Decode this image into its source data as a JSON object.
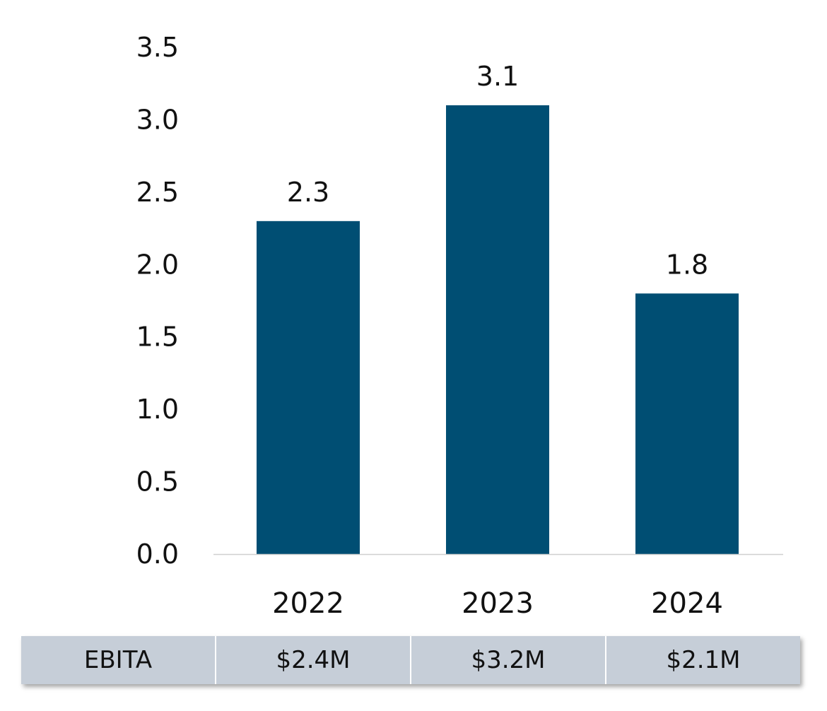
{
  "chart_data": {
    "type": "bar",
    "categories": [
      "2022",
      "2023",
      "2024"
    ],
    "values": [
      2.3,
      3.1,
      1.8
    ],
    "data_labels": [
      "2.3",
      "3.1",
      "1.8"
    ],
    "title": "",
    "xlabel": "",
    "ylabel": "",
    "ylim": [
      0,
      3.5
    ],
    "y_ticks": [
      "0.0",
      "0.5",
      "1.0",
      "1.5",
      "2.0",
      "2.5",
      "3.0",
      "3.5"
    ],
    "grid": false,
    "bar_color": "#004e73",
    "axis_color": "#d0d0d0"
  },
  "table": {
    "row_label": "EBITA",
    "values": [
      "$2.4M",
      "$3.2M",
      "$2.1M"
    ],
    "background": "#c6ced8"
  }
}
